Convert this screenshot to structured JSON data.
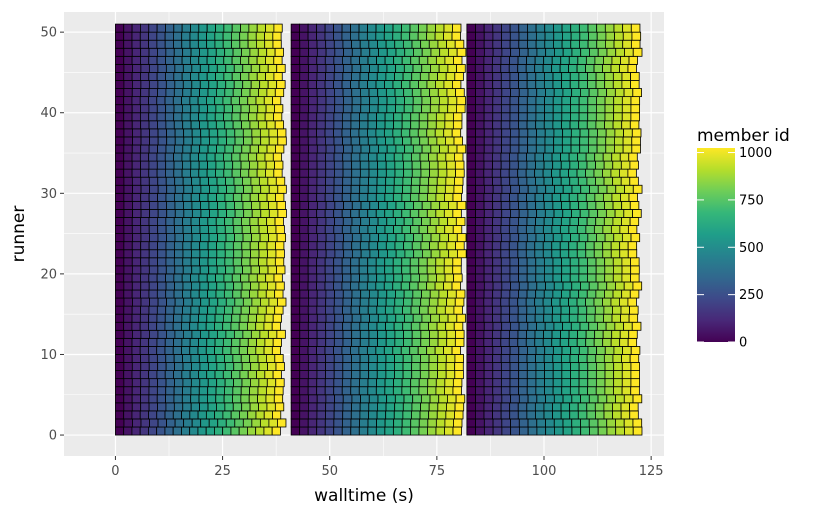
{
  "chart_data": {
    "type": "heatmap",
    "title": "",
    "xlabel": "walltime (s)",
    "ylabel": "runner",
    "xlim": [
      -12,
      128
    ],
    "ylim": [
      -2.6,
      52.5
    ],
    "xticks": [
      0,
      25,
      50,
      75,
      100,
      125
    ],
    "yticks": [
      0,
      10,
      20,
      30,
      40,
      50
    ],
    "grid": true,
    "background": "#ebebeb",
    "runners": {
      "first": 0,
      "last": 50
    },
    "batches": [
      {
        "start": 0,
        "end": 39,
        "member_id_start": 0,
        "member_id_end": 1024
      },
      {
        "start": 41,
        "end": 81,
        "member_id_start": 0,
        "member_id_end": 1024
      },
      {
        "start": 82,
        "end": 122,
        "member_id_start": 0,
        "member_id_end": 1024
      }
    ],
    "tiles_per_runner": 20,
    "tile_border": "#000000",
    "colormap": "viridis",
    "legend": {
      "title": "member id",
      "position": "right",
      "range": [
        0,
        1024
      ],
      "ticks": [
        0,
        250,
        500,
        750,
        1000
      ]
    }
  }
}
